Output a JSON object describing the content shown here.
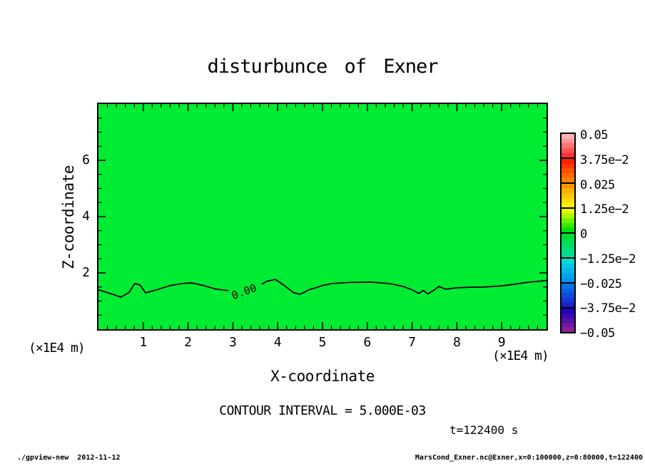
{
  "title": "disturbunce of Exner",
  "annotations": {
    "contour_interval": "CONTOUR INTERVAL = 5.000E-03",
    "time": "t=122400 s",
    "unit_left": "(×1E4 m)",
    "unit_right": "(×1E4 m)"
  },
  "footer": {
    "left": "./gpview-new  2012-11-12",
    "right": "MarsCond_Exner.nc@Exner,x=0:100000,z=0:80000,t=122400"
  },
  "chart_data": {
    "type": "contour",
    "title": "disturbunce of Exner",
    "xlabel": "X-coordinate",
    "ylabel": "Z-coordinate",
    "x_unit": "(×1E4 m)",
    "z_unit": "(×1E4 m)",
    "xlim": [
      0,
      10
    ],
    "zlim": [
      0,
      8
    ],
    "x_major_ticks": [
      1,
      2,
      3,
      4,
      5,
      6,
      7,
      8,
      9
    ],
    "x_minor_step": 0.2,
    "z_major_ticks": [
      2,
      4,
      6
    ],
    "z_minor_step": 0.5,
    "grid": false,
    "contour_interval": 0.005,
    "fill_color_near_zero": "#00EC32",
    "zero_contour": {
      "label": "0.00",
      "label_pos": {
        "x": 3.25,
        "z": 1.33,
        "rotation_deg": -20
      },
      "points": [
        [
          0.0,
          1.4
        ],
        [
          0.3,
          1.25
        ],
        [
          0.5,
          1.14
        ],
        [
          0.68,
          1.3
        ],
        [
          0.81,
          1.62
        ],
        [
          0.93,
          1.57
        ],
        [
          1.05,
          1.29
        ],
        [
          1.3,
          1.4
        ],
        [
          1.6,
          1.55
        ],
        [
          1.9,
          1.63
        ],
        [
          2.1,
          1.64
        ],
        [
          2.35,
          1.55
        ],
        [
          2.6,
          1.43
        ],
        [
          2.9,
          1.37
        ],
        [
          3.1,
          1.35
        ],
        [
          3.5,
          1.45
        ],
        [
          3.75,
          1.7
        ],
        [
          3.95,
          1.77
        ],
        [
          4.15,
          1.55
        ],
        [
          4.35,
          1.3
        ],
        [
          4.5,
          1.24
        ],
        [
          4.7,
          1.4
        ],
        [
          5.0,
          1.55
        ],
        [
          5.2,
          1.62
        ],
        [
          5.6,
          1.66
        ],
        [
          6.1,
          1.67
        ],
        [
          6.5,
          1.62
        ],
        [
          6.8,
          1.52
        ],
        [
          7.0,
          1.4
        ],
        [
          7.15,
          1.27
        ],
        [
          7.25,
          1.38
        ],
        [
          7.35,
          1.25
        ],
        [
          7.5,
          1.4
        ],
        [
          7.6,
          1.52
        ],
        [
          7.75,
          1.42
        ],
        [
          8.0,
          1.47
        ],
        [
          8.3,
          1.49
        ],
        [
          8.6,
          1.5
        ],
        [
          9.0,
          1.54
        ],
        [
          9.3,
          1.6
        ],
        [
          9.6,
          1.67
        ],
        [
          10.0,
          1.73
        ]
      ]
    },
    "colorbar": {
      "position": "right",
      "labels": [
        "0.05",
        "3.75e−2",
        "0.025",
        "1.25e−2",
        "0",
        "−1.25e−2",
        "−0.025",
        "−3.75e−2",
        "−0.05"
      ],
      "boundary_values": [
        0.05,
        0.0375,
        0.025,
        0.0125,
        0,
        -0.0125,
        -0.025,
        -0.0375,
        -0.05
      ],
      "segments": [
        {
          "from": "#FFB4B4",
          "to": "#FF3232"
        },
        {
          "from": "#FF1E00",
          "to": "#FF8200"
        },
        {
          "from": "#FF9600",
          "to": "#FFF000"
        },
        {
          "from": "#E6FF00",
          "to": "#00E100"
        },
        {
          "from": "#00DC32",
          "to": "#00DC96"
        },
        {
          "from": "#00DCDC",
          "to": "#0096F0"
        },
        {
          "from": "#0078E6",
          "to": "#1E1ECD"
        },
        {
          "from": "#1E00BE",
          "to": "#8C1E96"
        }
      ],
      "steps_per_segment": 5
    }
  }
}
